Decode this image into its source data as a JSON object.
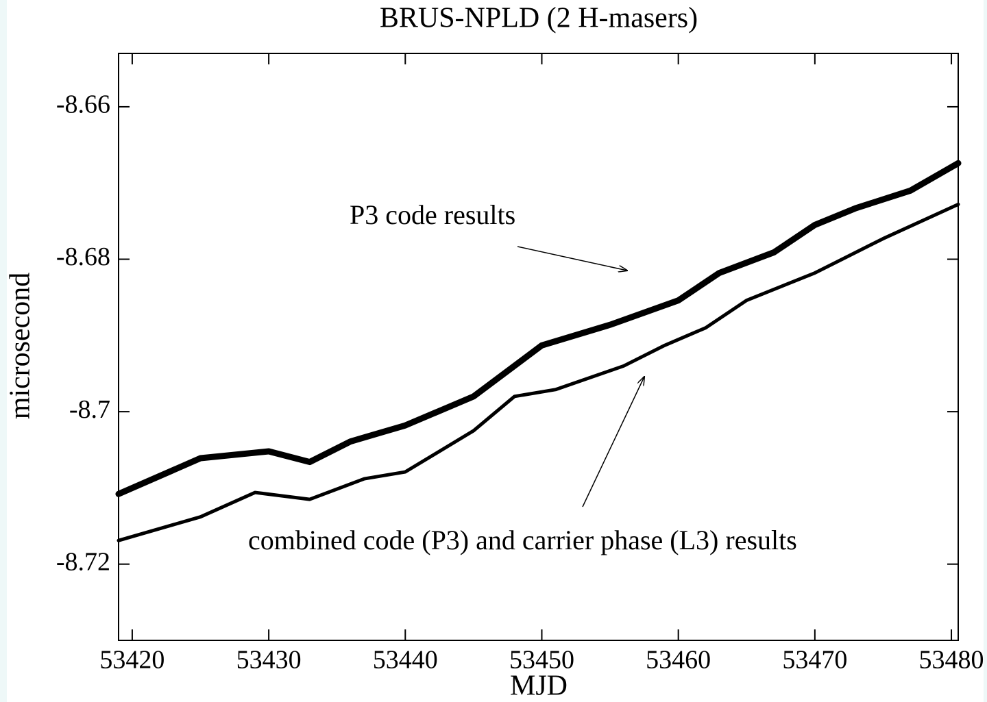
{
  "chart_data": {
    "type": "line",
    "title": "BRUS-NPLD (2 H-masers)",
    "x_label": "MJD",
    "y_label": "microsecond",
    "annotations": [
      "P3 code results",
      "combined code (P3) and carrier phase (L3) results"
    ],
    "xlim": [
      53419,
      53480.5
    ],
    "xticks": [
      53420,
      53430,
      53440,
      53450,
      53460,
      53470,
      53480
    ],
    "ylim": [
      -8.73,
      -8.653
    ],
    "yticks": [
      -8.66,
      -8.68,
      -8.7,
      -8.72
    ],
    "series": [
      {
        "name": "P3 code results",
        "color": "#000000",
        "x": [
          53419,
          53425,
          53430,
          53433,
          53436,
          53440,
          53445,
          53450,
          53455,
          53460,
          53463,
          53467,
          53470,
          53473,
          53477,
          53480.5
        ],
        "values": [
          -8.7108,
          -8.7061,
          -8.7052,
          -8.7066,
          -8.7039,
          -8.7018,
          -8.698,
          -8.6913,
          -8.6886,
          -8.6854,
          -8.6818,
          -8.6791,
          -8.6755,
          -8.6733,
          -8.671,
          -8.6674
        ]
      },
      {
        "name": "combined code (P3) and carrier phase (L3) results",
        "color": "#000000",
        "x": [
          53419,
          53425,
          53429,
          53433,
          53437,
          53440,
          53445,
          53448,
          53451,
          53456,
          53459,
          53462,
          53465,
          53470,
          53475,
          53480.5
        ],
        "values": [
          -8.7169,
          -8.7138,
          -8.7106,
          -8.7115,
          -8.7088,
          -8.7079,
          -8.7025,
          -8.698,
          -8.6971,
          -8.694,
          -8.6913,
          -8.689,
          -8.6854,
          -8.6818,
          -8.6773,
          -8.6728
        ]
      }
    ]
  }
}
